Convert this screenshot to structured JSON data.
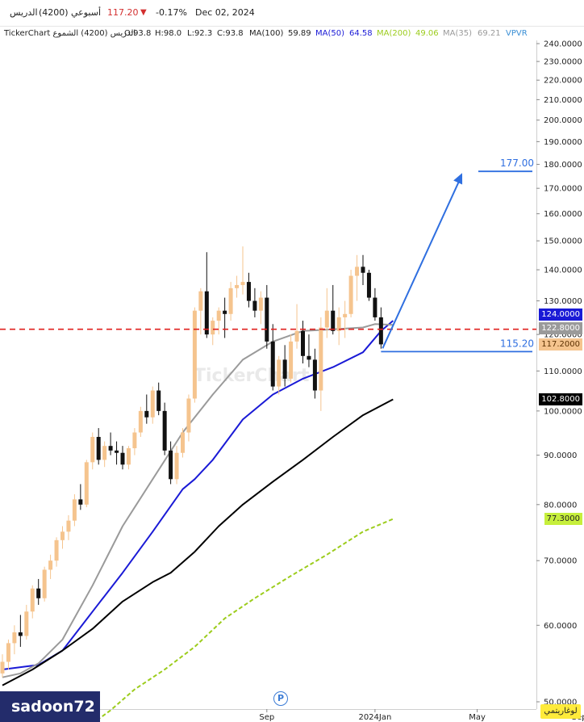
{
  "header": {
    "symbol_name": "الدريس",
    "symbol_code": "(4200)",
    "period": "أسبوعي",
    "last_price": "117.20",
    "change_pct": "-0.17%",
    "date": "Dec 02, 2024",
    "down_arrow": "▼"
  },
  "info_line": {
    "source": "TickerChart الدريس (4200) الشموع",
    "open": "O:93.8",
    "high": "H:98.0",
    "low": "L:92.3",
    "close": "C:93.8",
    "ma100_label": "MA(100)",
    "ma100_value": "59.89",
    "ma50_label": "MA(50)",
    "ma50_value": "64.58",
    "ma200_label": "MA(200)",
    "ma200_value": "49.06",
    "ma35_label": "MA(35)",
    "ma35_value": "69.21",
    "vpvr": "VPVR"
  },
  "colors": {
    "ma100": "#000000",
    "ma50": "#1a1ad6",
    "ma200": "#9ccc1c",
    "ma35": "#9a9a9a",
    "bull_candle": "#f5c48e",
    "bear_candle": "#111111",
    "target_line": "#2f6fe0",
    "resistance": "#e0201f",
    "down": "#d32f2f"
  },
  "watermark": "TickerChart",
  "user": "sadoon72",
  "scale_button": "لوغاريتمي",
  "p_icon": "P",
  "tags": {
    "ma50": "124.0000",
    "ma35": "122.8000",
    "last": "117.2000",
    "ma100": "102.8000",
    "ma200": "77.3000"
  },
  "chart_data": {
    "type": "candlestick",
    "log_scale": true,
    "ylim": [
      47,
      245
    ],
    "y_ticks": [
      "240.0000",
      "230.0000",
      "220.0000",
      "210.0000",
      "200.0000",
      "190.0000",
      "180.0000",
      "170.0000",
      "160.0000",
      "150.0000",
      "140.0000",
      "130.0000",
      "120.0000",
      "110.0000",
      "100.0000",
      "90.0000",
      "80.0000",
      "70.0000",
      "60.0000",
      "50.0000"
    ],
    "y_tick_values": [
      240,
      230,
      220,
      210,
      200,
      190,
      180,
      170,
      160,
      150,
      140,
      130,
      120,
      110,
      100,
      90,
      80,
      70,
      60,
      50
    ],
    "x_labels": [
      {
        "label": "Sep",
        "week": 44
      },
      {
        "label": "2024Jan",
        "week": 62
      },
      {
        "label": "May",
        "week": 79
      },
      {
        "label": "Sep",
        "week": 96
      },
      {
        "label": "2025Jan",
        "week": 113
      }
    ],
    "annotations": {
      "target_price": "177.00",
      "target_value": 177,
      "support_price": "115.20",
      "support_value": 115.2,
      "resistance_value": 121.5
    },
    "candles": [
      [
        53.5,
        56,
        53,
        55
      ],
      [
        55,
        58,
        54,
        57.5
      ],
      [
        57.5,
        60,
        56,
        59
      ],
      [
        59,
        61.5,
        57,
        58.5
      ],
      [
        58.5,
        63,
        58,
        62
      ],
      [
        62,
        66,
        61,
        65.5
      ],
      [
        65.5,
        67,
        63,
        64
      ],
      [
        64,
        69,
        63.5,
        68.5
      ],
      [
        68.5,
        71,
        67,
        70
      ],
      [
        70,
        74,
        69,
        73.5
      ],
      [
        73.5,
        76,
        72,
        75
      ],
      [
        75,
        78,
        73.5,
        77
      ],
      [
        77,
        82,
        76,
        81
      ],
      [
        81,
        84,
        79,
        80
      ],
      [
        80,
        89,
        79.5,
        88.5
      ],
      [
        88.5,
        95,
        87,
        94
      ],
      [
        94,
        96,
        88,
        89
      ],
      [
        89,
        93,
        87.5,
        92
      ],
      [
        92,
        95,
        90,
        91
      ],
      [
        91,
        93,
        88,
        90.5
      ],
      [
        90.5,
        92,
        87,
        88
      ],
      [
        88,
        92,
        87,
        91.5
      ],
      [
        91.5,
        96,
        90,
        95
      ],
      [
        95,
        101,
        94,
        100
      ],
      [
        100,
        104,
        97,
        98.5
      ],
      [
        98.5,
        106,
        97,
        105
      ],
      [
        105,
        107,
        99,
        100
      ],
      [
        100,
        102,
        90,
        91
      ],
      [
        91,
        93,
        84,
        85
      ],
      [
        85,
        92,
        84,
        90.5
      ],
      [
        90.5,
        96,
        89.5,
        95
      ],
      [
        95,
        104,
        93,
        103
      ],
      [
        103,
        128,
        102,
        127
      ],
      [
        127,
        134,
        120,
        133
      ],
      [
        133,
        146,
        119,
        120
      ],
      [
        120,
        125,
        117,
        124
      ],
      [
        124,
        128,
        120,
        127
      ],
      [
        127,
        131,
        119,
        126
      ],
      [
        126,
        136,
        124,
        134
      ],
      [
        134,
        138,
        131,
        135
      ],
      [
        135,
        148,
        132,
        136
      ],
      [
        136,
        139,
        128,
        130
      ],
      [
        130,
        134,
        125,
        127
      ],
      [
        127,
        133,
        123,
        131
      ],
      [
        131,
        135,
        116,
        118
      ],
      [
        118,
        123,
        105,
        106
      ],
      [
        106,
        114,
        104,
        113
      ],
      [
        113,
        117,
        106,
        108
      ],
      [
        108,
        120,
        107,
        118
      ],
      [
        118,
        129,
        116,
        121
      ],
      [
        121,
        124,
        112,
        114
      ],
      [
        114,
        120,
        111,
        113
      ],
      [
        113,
        116,
        103,
        105
      ],
      [
        105,
        125,
        100,
        122
      ],
      [
        122,
        134,
        119,
        127
      ],
      [
        127,
        135,
        120,
        121
      ],
      [
        121,
        128,
        117,
        125
      ],
      [
        125,
        130,
        119,
        126
      ],
      [
        126,
        140,
        125,
        138
      ],
      [
        138,
        145,
        130,
        141
      ],
      [
        141,
        145,
        135,
        139
      ],
      [
        139,
        140,
        130,
        131
      ],
      [
        131,
        134,
        124,
        125
      ],
      [
        125,
        128,
        116,
        117.2
      ]
    ],
    "start_week": 0,
    "series": [
      {
        "name": "MA(50)",
        "values": [
          [
            0,
            54
          ],
          [
            3,
            54.3
          ],
          [
            6,
            54.6
          ],
          [
            10,
            56.5
          ],
          [
            15,
            62
          ],
          [
            20,
            68
          ],
          [
            25,
            75
          ],
          [
            30,
            83
          ],
          [
            32,
            85
          ],
          [
            35,
            89
          ],
          [
            40,
            98
          ],
          [
            45,
            104
          ],
          [
            50,
            108
          ],
          [
            55,
            111
          ],
          [
            60,
            115
          ],
          [
            63,
            121
          ],
          [
            65,
            124
          ]
        ]
      },
      {
        "name": "MA(35)",
        "values": [
          [
            0,
            53
          ],
          [
            3,
            53.5
          ],
          [
            6,
            54.8
          ],
          [
            10,
            58
          ],
          [
            15,
            66
          ],
          [
            20,
            76
          ],
          [
            25,
            85
          ],
          [
            30,
            95
          ],
          [
            35,
            104
          ],
          [
            40,
            113
          ],
          [
            45,
            118
          ],
          [
            50,
            121
          ],
          [
            55,
            121.5
          ],
          [
            60,
            122
          ],
          [
            62,
            123
          ],
          [
            65,
            122.8
          ]
        ]
      },
      {
        "name": "MA(100)",
        "values": [
          [
            0,
            52
          ],
          [
            5,
            54
          ],
          [
            10,
            56.5
          ],
          [
            15,
            59.5
          ],
          [
            20,
            63.5
          ],
          [
            25,
            66.5
          ],
          [
            28,
            68
          ],
          [
            32,
            71.5
          ],
          [
            36,
            76
          ],
          [
            40,
            80
          ],
          [
            45,
            84.5
          ],
          [
            50,
            89
          ],
          [
            55,
            94
          ],
          [
            60,
            99
          ],
          [
            65,
            102.8
          ]
        ]
      },
      {
        "name": "MA(200)",
        "values": [
          [
            14,
            47
          ],
          [
            18,
            49
          ],
          [
            22,
            51.5
          ],
          [
            27,
            54
          ],
          [
            32,
            57
          ],
          [
            37,
            61
          ],
          [
            42,
            64
          ],
          [
            48,
            67.5
          ],
          [
            54,
            71
          ],
          [
            60,
            75
          ],
          [
            65,
            77.3
          ]
        ]
      }
    ]
  }
}
